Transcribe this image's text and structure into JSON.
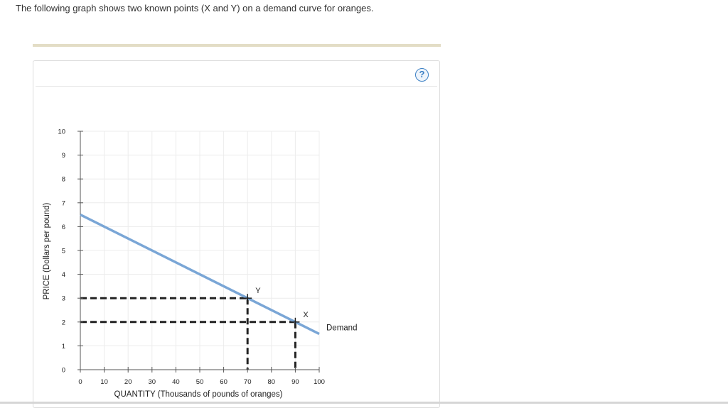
{
  "question": {
    "text": "The following graph shows two known points (X and Y) on a demand curve for oranges."
  },
  "help": {
    "label": "?"
  },
  "colors": {
    "demand_line": "#7aa6d6",
    "guide_lines": "#222222",
    "grid": "#ececec",
    "help_accent": "#3a7fc4"
  },
  "icons": {
    "help": "question-mark-circle-icon"
  },
  "chart_data": {
    "type": "line",
    "title": "",
    "xlabel": "QUANTITY (Thousands of pounds of oranges)",
    "ylabel": "PRICE (Dollars per pound)",
    "xlim": [
      0,
      100
    ],
    "ylim": [
      0,
      10
    ],
    "x_ticks": [
      0,
      10,
      20,
      30,
      40,
      50,
      60,
      70,
      80,
      90,
      100
    ],
    "y_ticks": [
      0,
      1,
      2,
      3,
      4,
      5,
      6,
      7,
      8,
      9,
      10
    ],
    "grid": true,
    "series": [
      {
        "name": "Demand",
        "x": [
          0,
          100
        ],
        "y": [
          6.5,
          1.5
        ]
      }
    ],
    "points": [
      {
        "label": "Y",
        "x": 70,
        "y": 3
      },
      {
        "label": "X",
        "x": 90,
        "y": 2
      }
    ]
  }
}
